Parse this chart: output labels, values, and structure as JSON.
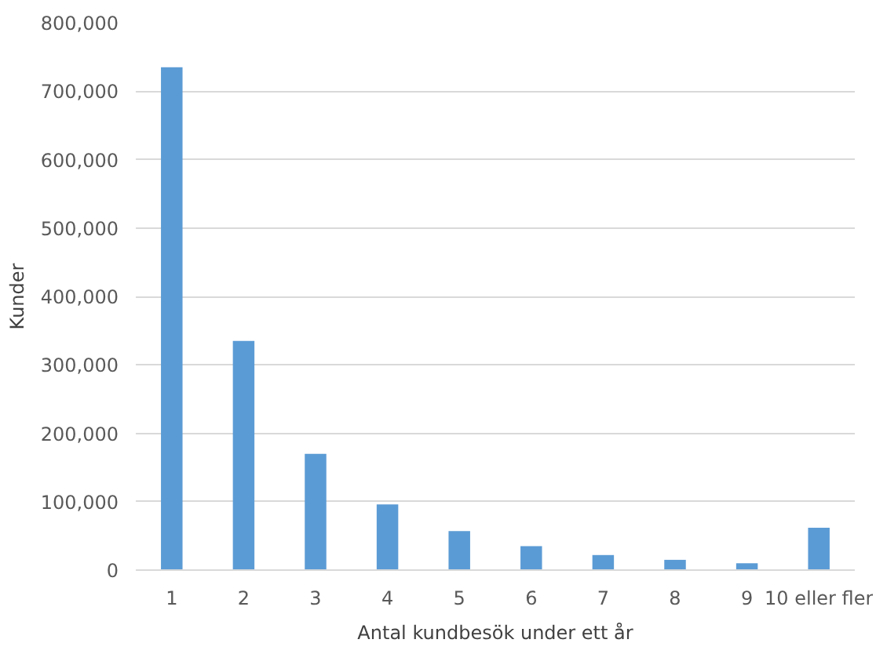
{
  "chart_data": {
    "type": "bar",
    "xlabel": "Antal kundbesök under ett år",
    "ylabel": "Kunder",
    "categories": [
      "1",
      "2",
      "3",
      "4",
      "5",
      "6",
      "7",
      "8",
      "9",
      "10 eller fler"
    ],
    "values": [
      735000,
      335000,
      170000,
      96000,
      57000,
      35000,
      22000,
      15000,
      10000,
      62000
    ],
    "color": "#5b9bd5",
    "ylim": [
      0,
      800000
    ],
    "yticks": [
      {
        "value": 0,
        "label": "0"
      },
      {
        "value": 100000,
        "label": "100,000"
      },
      {
        "value": 200000,
        "label": "200,000"
      },
      {
        "value": 300000,
        "label": "300,000"
      },
      {
        "value": 400000,
        "label": "400,000"
      },
      {
        "value": 500000,
        "label": "500,000"
      },
      {
        "value": 600000,
        "label": "600,000"
      },
      {
        "value": 700000,
        "label": "700,000"
      },
      {
        "value": 800000,
        "label": "800,000"
      }
    ],
    "grid": "y"
  }
}
